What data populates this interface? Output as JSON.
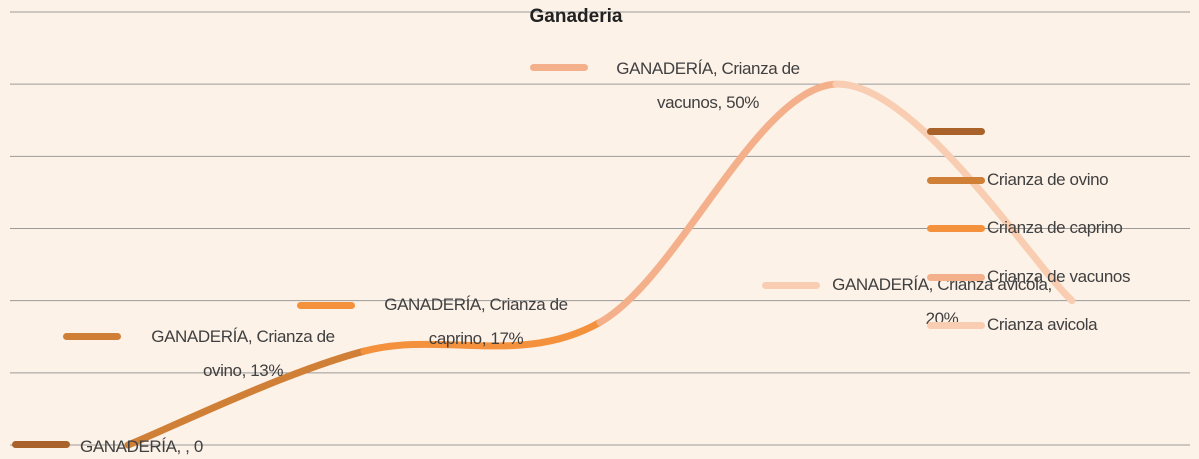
{
  "chart_data": {
    "type": "line",
    "title": "Ganaderia",
    "series": [
      {
        "name": "GANADERÍA",
        "values": [
          0,
          13,
          17,
          50,
          20
        ],
        "value_labels": [
          "GANADERÍA, , 0",
          "GANADERÍA, Crianza de ovino, 13%",
          "GANADERÍA, Crianza de caprino, 17%",
          "GANADERÍA, Crianza de vacunos, 50%",
          "GANADERÍA, Crianza avicola, 20%"
        ]
      }
    ],
    "categories": [
      null,
      "Crianza de ovino",
      "Crianza de caprino",
      "Crianza de vacunos",
      "Crianza avicola"
    ],
    "colors": [
      "#a8622a",
      "#d07f36",
      "#f4913d",
      "#f4b08a",
      "#f8cdb2"
    ],
    "ylim": [
      0,
      60
    ],
    "yticks": [
      0,
      10,
      20,
      30,
      40,
      50,
      60
    ],
    "grid": true,
    "smooth": true,
    "legend": "right"
  }
}
